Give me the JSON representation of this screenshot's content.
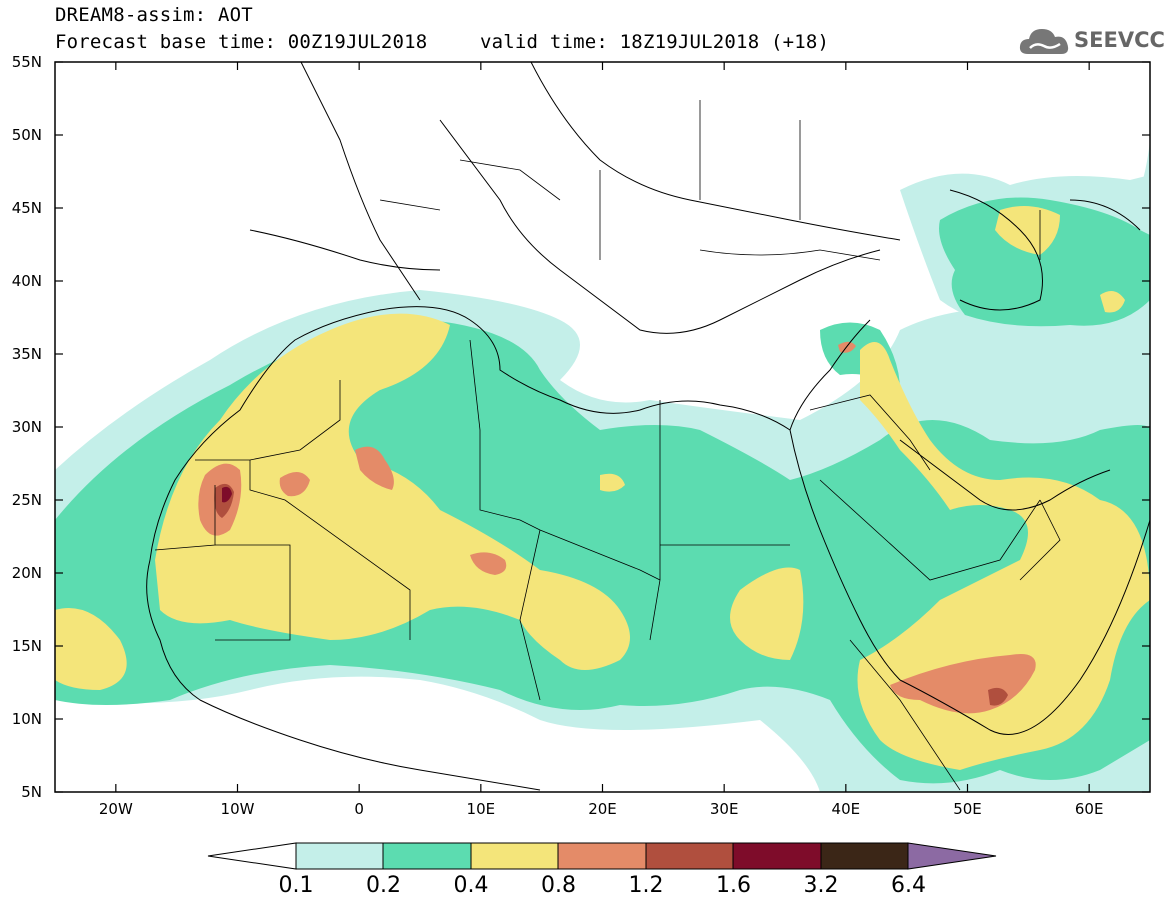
{
  "header": {
    "line1": "DREAM8-assim: AOT",
    "line2": "Forecast base time: 00Z19JUL2018",
    "valid": "valid time: 18Z19JUL2018 (+18)"
  },
  "logo": {
    "text": "SEEVCCC",
    "icon": "cloud-icon"
  },
  "map": {
    "lat_labels": [
      "55N",
      "50N",
      "45N",
      "40N",
      "35N",
      "30N",
      "25N",
      "20N",
      "15N",
      "10N",
      "5N"
    ],
    "lon_labels": [
      "20W",
      "10W",
      "0",
      "10E",
      "20E",
      "30E",
      "40E",
      "50E",
      "60E"
    ],
    "lon_range": [
      -25,
      65
    ],
    "lat_range": [
      5,
      55
    ]
  },
  "colorbar": {
    "labels": [
      "0.1",
      "0.2",
      "0.4",
      "0.8",
      "1.2",
      "1.6",
      "3.2",
      "6.4"
    ],
    "colors": [
      "#ffffff",
      "#c4efe9",
      "#5cdcb0",
      "#f4e57a",
      "#e48b68",
      "#b04f3e",
      "#7e0c2a",
      "#3b2617",
      "#8c6aa3"
    ]
  }
}
